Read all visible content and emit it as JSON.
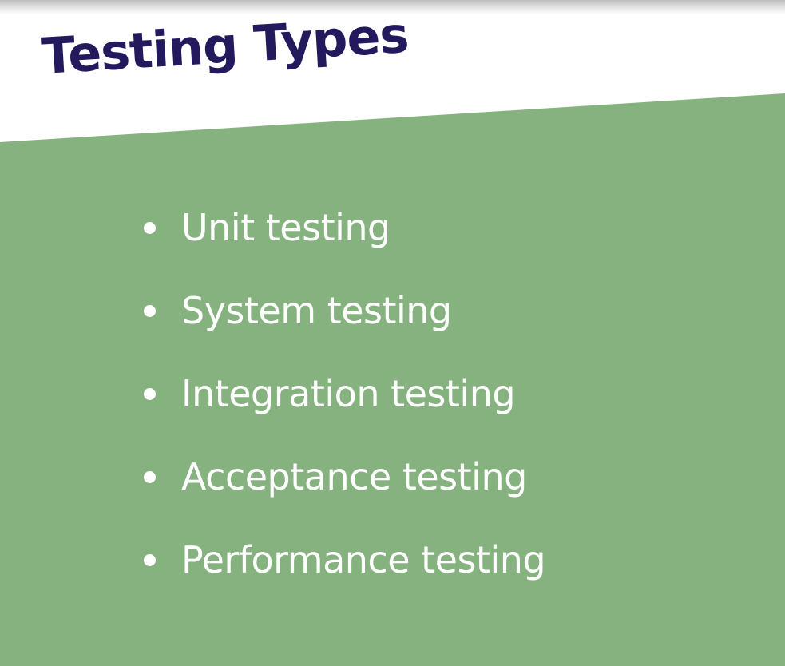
{
  "slide": {
    "title": "Testing Types",
    "items": [
      {
        "label": "Unit testing"
      },
      {
        "label": "System testing"
      },
      {
        "label": "Integration testing"
      },
      {
        "label": "Acceptance testing"
      },
      {
        "label": "Performance testing"
      }
    ]
  },
  "colors": {
    "title": "#231a5e",
    "band": "#85b27e",
    "background": "#ffffff",
    "bullet_text": "#ffffff"
  }
}
